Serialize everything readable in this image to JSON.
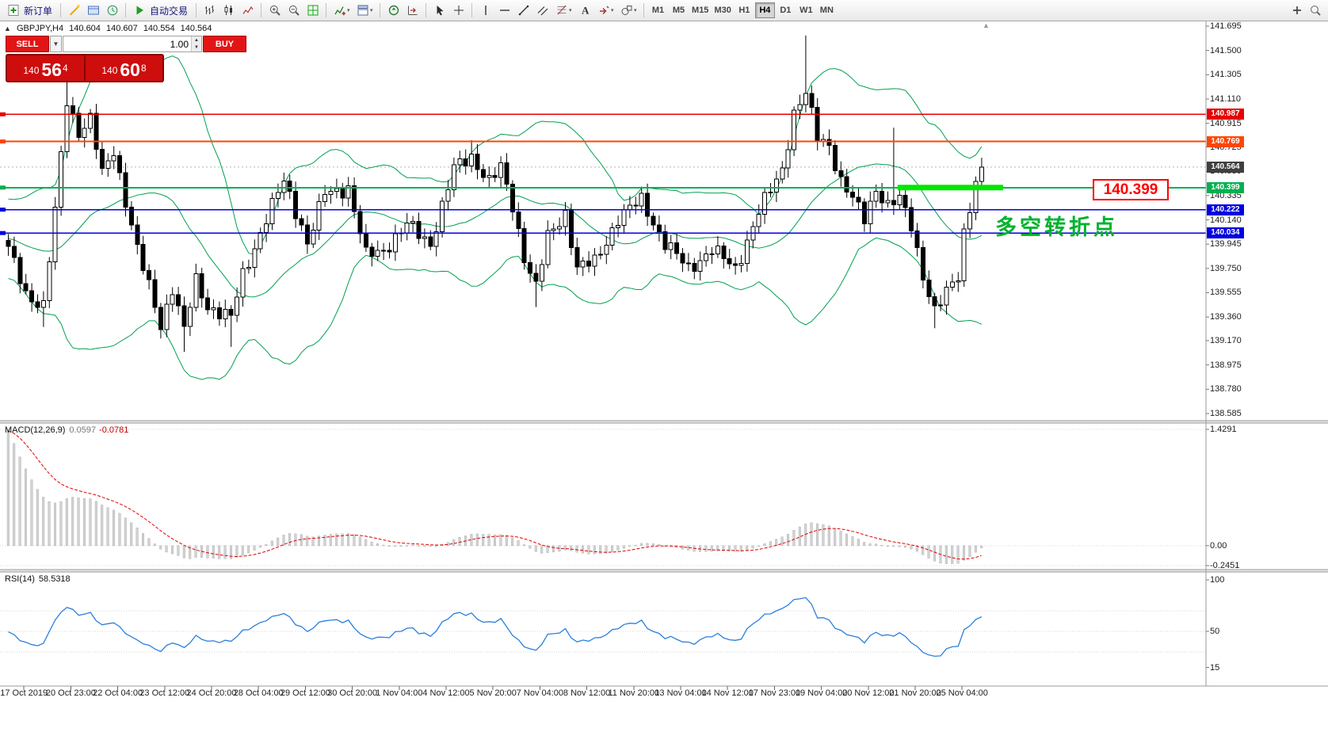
{
  "toolbar": {
    "new_order_label": "新订单",
    "autotrading_label": "自动交易",
    "timeframes": [
      "M1",
      "M5",
      "M15",
      "M30",
      "H1",
      "H4",
      "D1",
      "W1",
      "MN"
    ],
    "active_timeframe": "H4",
    "groups": [
      [
        {
          "n": "new-order",
          "label": "新订单"
        }
      ],
      [
        {
          "n": "chart-wizard"
        },
        {
          "n": "profiles"
        },
        {
          "n": "market-watch"
        }
      ],
      [
        {
          "n": "autotrading",
          "label": "自动交易"
        }
      ],
      [
        {
          "n": "bar-chart"
        },
        {
          "n": "candlestick-chart"
        },
        {
          "n": "line-chart"
        }
      ],
      [
        {
          "n": "zoom-in"
        },
        {
          "n": "zoom-out"
        },
        {
          "n": "tile-windows"
        }
      ],
      [
        {
          "n": "indicators",
          "dd": 1
        },
        {
          "n": "templates",
          "dd": 1
        }
      ],
      [
        {
          "n": "auto-scroll"
        },
        {
          "n": "chart-shift"
        }
      ],
      [
        {
          "n": "cursor"
        },
        {
          "n": "crosshair"
        }
      ],
      [
        {
          "n": "vertical-line"
        },
        {
          "n": "horizontal-line"
        },
        {
          "n": "trendline"
        },
        {
          "n": "equidistant-channel"
        },
        {
          "n": "fibonacci",
          "dd": 1
        },
        {
          "n": "text-label"
        },
        {
          "n": "arrows",
          "dd": 1
        },
        {
          "n": "shapes",
          "dd": 1
        }
      ]
    ],
    "right_icons": [
      {
        "n": "add"
      },
      {
        "n": "search"
      }
    ]
  },
  "trade_panel": {
    "sell_label": "SELL",
    "buy_label": "BUY",
    "volume": "1.00",
    "sell_price": {
      "base": "140",
      "pips": "56",
      "pt": "4"
    },
    "buy_price": {
      "base": "140",
      "pips": "60",
      "pt": "8"
    }
  },
  "chart": {
    "header": {
      "symbol": "GBPJPY,H4",
      "open": "140.604",
      "high": "140.607",
      "low": "140.554",
      "close": "140.564"
    },
    "annotation_text": "多空转折点",
    "callout_label": "140.399",
    "price_scale": [
      "141.695",
      "141.500",
      "141.305",
      "141.110",
      "140.915",
      "140.725",
      "140.530",
      "140.335",
      "140.140",
      "139.945",
      "139.750",
      "139.555",
      "139.360",
      "139.170",
      "138.975",
      "138.780",
      "138.585"
    ],
    "time_scale": [
      "17 Oct 2019",
      "20 Oct 23:00",
      "22 Oct 04:00",
      "23 Oct 12:00",
      "24 Oct 20:00",
      "28 Oct 04:00",
      "29 Oct 12:00",
      "30 Oct 20:00",
      "1 Nov 04:00",
      "4 Nov 12:00",
      "5 Nov 20:00",
      "7 Nov 04:00",
      "8 Nov 12:00",
      "11 Nov 20:00",
      "13 Nov 04:00",
      "14 Nov 12:00",
      "17 Nov 23:00",
      "19 Nov 04:00",
      "20 Nov 12:00",
      "21 Nov 20:00",
      "25 Nov 04:00"
    ]
  },
  "indicators": {
    "macd": {
      "label": "MACD(12,26,9)",
      "value_main": "0.0597",
      "value_signal": "-0.0781",
      "scale": [
        "1.4291",
        "0.00",
        "-0.2451"
      ]
    },
    "rsi": {
      "label": "RSI(14)",
      "value": "58.5318",
      "scale": [
        "100",
        "50",
        "15"
      ]
    }
  },
  "chart_data": {
    "type": "candlestick",
    "symbol": "GBPJPY",
    "timeframe": "H4",
    "bid": 140.564,
    "ohlc_header": {
      "open": 140.604,
      "high": 140.607,
      "low": 140.554,
      "close": 140.564
    },
    "price_axis": {
      "min": 138.585,
      "max": 141.695,
      "tick": 0.195
    },
    "levels": [
      {
        "price": 140.987,
        "color": "#e60000",
        "width": 1.4,
        "label": "140.987"
      },
      {
        "price": 140.769,
        "color": "#ff4500",
        "width": 2,
        "label": "140.769"
      },
      {
        "price": 140.399,
        "color": "#00b050",
        "width": 2,
        "label": "140.399"
      },
      {
        "price": 140.222,
        "color": "#0000e0",
        "width": 1.4,
        "label": "140.222"
      },
      {
        "price": 140.034,
        "color": "#0000e0",
        "width": 1.4,
        "label": "140.034"
      }
    ],
    "bid_tag": {
      "price": 140.564,
      "label": "140.564",
      "color": "#3f3f3f"
    },
    "highlight_segment": {
      "price": 140.399,
      "from_index": 152,
      "to_index": 170,
      "color": "#00e800"
    },
    "bollinger": {
      "period": 20,
      "deviation": 2,
      "color": "#00a050"
    },
    "candles_waypoints": [
      [
        0,
        139.9
      ],
      [
        3,
        139.55
      ],
      [
        6,
        139.45
      ],
      [
        8,
        140.2
      ],
      [
        10,
        141.1
      ],
      [
        12,
        140.85
      ],
      [
        14,
        140.95
      ],
      [
        16,
        140.5
      ],
      [
        18,
        140.7
      ],
      [
        22,
        139.9
      ],
      [
        26,
        139.3
      ],
      [
        28,
        139.6
      ],
      [
        30,
        139.25
      ],
      [
        32,
        139.65
      ],
      [
        34,
        139.45
      ],
      [
        38,
        139.35
      ],
      [
        40,
        139.7
      ],
      [
        44,
        140.15
      ],
      [
        47,
        140.45
      ],
      [
        50,
        140.1
      ],
      [
        51,
        139.95
      ],
      [
        54,
        140.35
      ],
      [
        58,
        140.4
      ],
      [
        61,
        139.85
      ],
      [
        64,
        139.9
      ],
      [
        68,
        140.1
      ],
      [
        72,
        139.95
      ],
      [
        76,
        140.55
      ],
      [
        79,
        140.65
      ],
      [
        82,
        140.45
      ],
      [
        84,
        140.55
      ],
      [
        86,
        140.25
      ],
      [
        88,
        139.85
      ],
      [
        90,
        139.6
      ],
      [
        92,
        140.0
      ],
      [
        95,
        140.2
      ],
      [
        97,
        139.75
      ],
      [
        100,
        139.8
      ],
      [
        104,
        140.15
      ],
      [
        108,
        140.3
      ],
      [
        112,
        139.95
      ],
      [
        116,
        139.75
      ],
      [
        120,
        139.9
      ],
      [
        124,
        139.75
      ],
      [
        128,
        140.2
      ],
      [
        132,
        140.55
      ],
      [
        134,
        141.0
      ],
      [
        136,
        141.15
      ],
      [
        138,
        140.8
      ],
      [
        140,
        140.75
      ],
      [
        142,
        140.45
      ],
      [
        146,
        140.15
      ],
      [
        148,
        140.4
      ],
      [
        150,
        140.25
      ],
      [
        152,
        140.3
      ],
      [
        154,
        140.1
      ],
      [
        156,
        139.7
      ],
      [
        158,
        139.4
      ],
      [
        160,
        139.55
      ],
      [
        162,
        139.7
      ],
      [
        163,
        140.05
      ],
      [
        165,
        140.45
      ],
      [
        166,
        140.56
      ]
    ],
    "candle_count": 167,
    "wick_overrides": {
      "high": [
        [
          10,
          141.27
        ],
        [
          79,
          140.78
        ],
        [
          136,
          141.62
        ],
        [
          151,
          140.88
        ]
      ],
      "low": [
        [
          6,
          139.28
        ],
        [
          30,
          139.08
        ],
        [
          38,
          139.12
        ],
        [
          90,
          139.44
        ],
        [
          158,
          139.27
        ]
      ]
    },
    "last_close": 140.564,
    "macd": {
      "fast": 12,
      "slow": 26,
      "signal": 9,
      "current": 0.0597,
      "signal_current": -0.0781,
      "range": [
        -0.2451,
        1.4291
      ]
    },
    "rsi": {
      "period": 14,
      "current": 58.5318,
      "range": [
        0,
        100
      ]
    }
  }
}
